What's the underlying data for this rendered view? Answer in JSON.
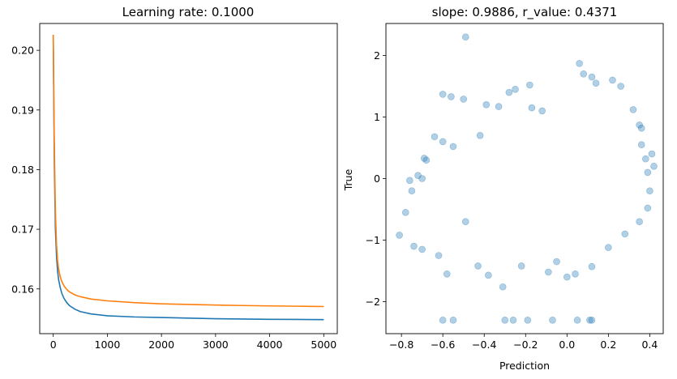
{
  "chart_data": [
    {
      "type": "line",
      "title": "Learning rate: 0.1000",
      "xlabel": "",
      "ylabel": "",
      "xlim": [
        -250,
        5250
      ],
      "ylim": [
        0.1525,
        0.2045
      ],
      "xticks": [
        0,
        1000,
        2000,
        3000,
        4000,
        5000
      ],
      "yticks": [
        0.16,
        0.17,
        0.18,
        0.19,
        0.2
      ],
      "grid": false,
      "series": [
        {
          "color": "#1f77b4",
          "x": [
            0,
            10,
            20,
            40,
            60,
            80,
            100,
            130,
            160,
            200,
            250,
            300,
            400,
            500,
            700,
            1000,
            1500,
            2000,
            2500,
            3000,
            3500,
            4000,
            4500,
            5000
          ],
          "values": [
            0.2026,
            0.191,
            0.181,
            0.17,
            0.1655,
            0.163,
            0.1615,
            0.1602,
            0.1592,
            0.1584,
            0.1577,
            0.1572,
            0.1566,
            0.1562,
            0.1558,
            0.1555,
            0.1553,
            0.1552,
            0.1551,
            0.155,
            0.15495,
            0.1549,
            0.15488,
            0.15485
          ]
        },
        {
          "color": "#ff7f0e",
          "x": [
            0,
            10,
            20,
            40,
            60,
            80,
            100,
            130,
            160,
            200,
            250,
            300,
            400,
            500,
            700,
            1000,
            1500,
            2000,
            2500,
            3000,
            3500,
            4000,
            4500,
            5000
          ],
          "values": [
            0.2026,
            0.193,
            0.184,
            0.173,
            0.1675,
            0.1648,
            0.1633,
            0.162,
            0.1612,
            0.1605,
            0.1599,
            0.1595,
            0.159,
            0.1587,
            0.1583,
            0.158,
            0.1577,
            0.1575,
            0.1574,
            0.1573,
            0.15722,
            0.15715,
            0.1571,
            0.15705
          ]
        }
      ]
    },
    {
      "type": "scatter",
      "title": "slope: 0.9886, r_value: 0.4371",
      "xlabel": "Prediction",
      "ylabel": "True",
      "xlim": [
        -0.875,
        0.465
      ],
      "ylim": [
        -2.52,
        2.52
      ],
      "xticks": [
        -0.8,
        -0.6,
        -0.4,
        -0.2,
        0.0,
        0.2,
        0.4
      ],
      "xtick_labels": [
        "−0.8",
        "−0.6",
        "−0.4",
        "−0.2",
        "0.0",
        "0.2",
        "0.4"
      ],
      "yticks": [
        -2,
        -1,
        0,
        1,
        2
      ],
      "ytick_labels": [
        "−2",
        "−1",
        "0",
        "1",
        "2"
      ],
      "grid": false,
      "point_color": "#1f77b4",
      "point_alpha": 0.35,
      "points": [
        [
          -0.49,
          2.3
        ],
        [
          0.06,
          1.87
        ],
        [
          0.08,
          1.7
        ],
        [
          -0.18,
          1.52
        ],
        [
          0.22,
          1.6
        ],
        [
          0.14,
          1.55
        ],
        [
          -0.6,
          1.37
        ],
        [
          -0.56,
          1.33
        ],
        [
          -0.39,
          1.2
        ],
        [
          -0.33,
          1.17
        ],
        [
          0.12,
          1.65
        ],
        [
          0.26,
          1.5
        ],
        [
          0.32,
          1.12
        ],
        [
          -0.17,
          1.15
        ],
        [
          -0.12,
          1.1
        ],
        [
          -0.5,
          1.29
        ],
        [
          -0.25,
          1.45
        ],
        [
          -0.28,
          1.4
        ],
        [
          0.35,
          0.87
        ],
        [
          0.36,
          0.82
        ],
        [
          -0.64,
          0.68
        ],
        [
          -0.6,
          0.6
        ],
        [
          -0.55,
          0.52
        ],
        [
          -0.42,
          0.7
        ],
        [
          -0.69,
          0.33
        ],
        [
          -0.68,
          0.3
        ],
        [
          -0.72,
          0.05
        ],
        [
          -0.7,
          0.0
        ],
        [
          -0.76,
          -0.03
        ],
        [
          -0.75,
          -0.2
        ],
        [
          -0.81,
          -0.92
        ],
        [
          -0.78,
          -0.55
        ],
        [
          -0.74,
          -1.1
        ],
        [
          -0.7,
          -1.15
        ],
        [
          -0.62,
          -1.25
        ],
        [
          -0.58,
          -1.55
        ],
        [
          -0.43,
          -1.42
        ],
        [
          -0.38,
          -1.57
        ],
        [
          -0.31,
          -1.76
        ],
        [
          -0.22,
          -1.42
        ],
        [
          -0.09,
          -1.52
        ],
        [
          -0.05,
          -1.35
        ],
        [
          0.0,
          -1.6
        ],
        [
          0.04,
          -1.55
        ],
        [
          0.12,
          -1.43
        ],
        [
          0.2,
          -1.12
        ],
        [
          0.28,
          -0.9
        ],
        [
          0.35,
          -0.7
        ],
        [
          0.39,
          -0.48
        ],
        [
          0.42,
          0.2
        ],
        [
          0.41,
          0.4
        ],
        [
          0.38,
          0.32
        ],
        [
          0.36,
          0.55
        ],
        [
          0.39,
          0.1
        ],
        [
          0.4,
          -0.2
        ],
        [
          -0.49,
          -0.7
        ],
        [
          -0.6,
          -2.3
        ],
        [
          -0.55,
          -2.3
        ],
        [
          -0.3,
          -2.3
        ],
        [
          -0.26,
          -2.3
        ],
        [
          -0.19,
          -2.3
        ],
        [
          -0.07,
          -2.3
        ],
        [
          0.05,
          -2.3
        ],
        [
          0.11,
          -2.3
        ],
        [
          0.12,
          -2.3
        ]
      ]
    }
  ]
}
